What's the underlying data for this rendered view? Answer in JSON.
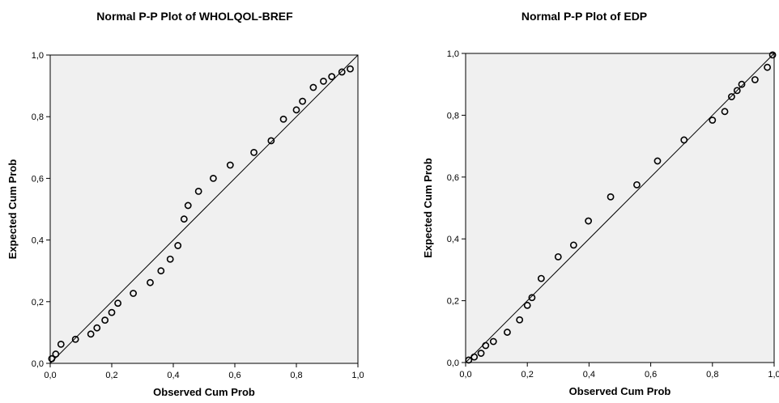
{
  "chart_data": [
    {
      "type": "scatter",
      "title": "Normal P-P Plot of WHOLQOL-BREF",
      "xlabel": "Observed Cum Prob",
      "ylabel": "Expected Cum Prob",
      "xlim": [
        0,
        1
      ],
      "ylim": [
        0,
        1
      ],
      "xticks": [
        "0,0",
        "0,2",
        "0,4",
        "0,6",
        "0,8",
        "1,0"
      ],
      "yticks": [
        "0,0",
        "0,2",
        "0,4",
        "0,6",
        "0,8",
        "1,0"
      ],
      "reference_line": [
        [
          0,
          0
        ],
        [
          1,
          1
        ]
      ],
      "grid": false,
      "plot_background": "#f0f0f0",
      "marker_color": "#000000",
      "points": [
        {
          "x": 0.005,
          "y": 0.015
        },
        {
          "x": 0.018,
          "y": 0.03
        },
        {
          "x": 0.035,
          "y": 0.062
        },
        {
          "x": 0.082,
          "y": 0.078
        },
        {
          "x": 0.132,
          "y": 0.095
        },
        {
          "x": 0.152,
          "y": 0.115
        },
        {
          "x": 0.178,
          "y": 0.14
        },
        {
          "x": 0.2,
          "y": 0.165
        },
        {
          "x": 0.22,
          "y": 0.195
        },
        {
          "x": 0.27,
          "y": 0.227
        },
        {
          "x": 0.325,
          "y": 0.262
        },
        {
          "x": 0.36,
          "y": 0.3
        },
        {
          "x": 0.39,
          "y": 0.338
        },
        {
          "x": 0.415,
          "y": 0.382
        },
        {
          "x": 0.435,
          "y": 0.468
        },
        {
          "x": 0.448,
          "y": 0.512
        },
        {
          "x": 0.482,
          "y": 0.558
        },
        {
          "x": 0.53,
          "y": 0.6
        },
        {
          "x": 0.585,
          "y": 0.643
        },
        {
          "x": 0.662,
          "y": 0.684
        },
        {
          "x": 0.718,
          "y": 0.722
        },
        {
          "x": 0.758,
          "y": 0.792
        },
        {
          "x": 0.8,
          "y": 0.822
        },
        {
          "x": 0.82,
          "y": 0.85
        },
        {
          "x": 0.855,
          "y": 0.895
        },
        {
          "x": 0.888,
          "y": 0.915
        },
        {
          "x": 0.915,
          "y": 0.93
        },
        {
          "x": 0.948,
          "y": 0.945
        },
        {
          "x": 0.975,
          "y": 0.955
        }
      ]
    },
    {
      "type": "scatter",
      "title": "Normal P-P Plot of EDP",
      "xlabel": "Observed Cum Prob",
      "ylabel": "Expected Cum Prob",
      "xlim": [
        0,
        1
      ],
      "ylim": [
        0,
        1
      ],
      "xticks": [
        "0,0",
        "0,2",
        "0,4",
        "0,6",
        "0,8",
        "1,0"
      ],
      "yticks": [
        "0,0",
        "0,2",
        "0,4",
        "0,6",
        "0,8",
        "1,0"
      ],
      "reference_line": [
        [
          0,
          0
        ],
        [
          1,
          1
        ]
      ],
      "grid": false,
      "plot_background": "#f0f0f0",
      "marker_color": "#000000",
      "points": [
        {
          "x": 0.01,
          "y": 0.008
        },
        {
          "x": 0.028,
          "y": 0.018
        },
        {
          "x": 0.05,
          "y": 0.03
        },
        {
          "x": 0.065,
          "y": 0.055
        },
        {
          "x": 0.09,
          "y": 0.068
        },
        {
          "x": 0.135,
          "y": 0.098
        },
        {
          "x": 0.175,
          "y": 0.138
        },
        {
          "x": 0.2,
          "y": 0.185
        },
        {
          "x": 0.215,
          "y": 0.21
        },
        {
          "x": 0.245,
          "y": 0.272
        },
        {
          "x": 0.3,
          "y": 0.342
        },
        {
          "x": 0.35,
          "y": 0.38
        },
        {
          "x": 0.398,
          "y": 0.458
        },
        {
          "x": 0.47,
          "y": 0.536
        },
        {
          "x": 0.555,
          "y": 0.575
        },
        {
          "x": 0.622,
          "y": 0.652
        },
        {
          "x": 0.708,
          "y": 0.72
        },
        {
          "x": 0.8,
          "y": 0.784
        },
        {
          "x": 0.84,
          "y": 0.812
        },
        {
          "x": 0.862,
          "y": 0.86
        },
        {
          "x": 0.88,
          "y": 0.88
        },
        {
          "x": 0.895,
          "y": 0.9
        },
        {
          "x": 0.938,
          "y": 0.915
        },
        {
          "x": 0.978,
          "y": 0.955
        },
        {
          "x": 0.995,
          "y": 0.995
        }
      ]
    }
  ]
}
